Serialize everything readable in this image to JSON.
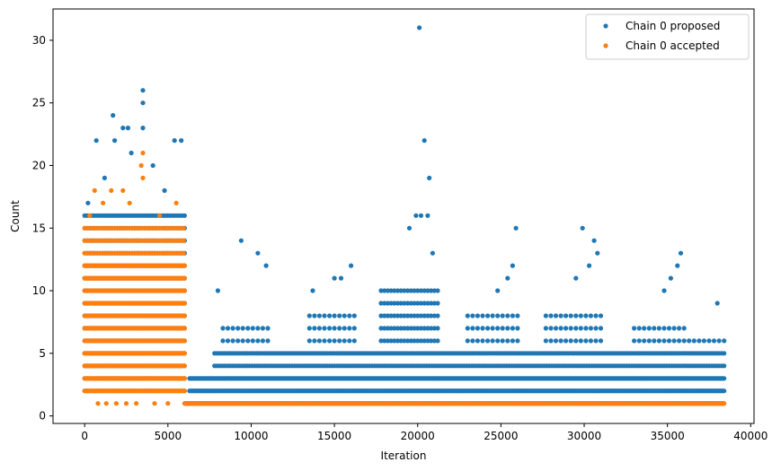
{
  "chart_data": {
    "type": "scatter",
    "title": "",
    "xlabel": "Iteration",
    "ylabel": "Count",
    "xlim": [
      -1900,
      40200
    ],
    "ylim": [
      -0.6,
      32.5
    ],
    "xticks": [
      0,
      5000,
      10000,
      15000,
      20000,
      25000,
      30000,
      35000,
      40000
    ],
    "xtick_labels": [
      "0",
      "5000",
      "10000",
      "15000",
      "20000",
      "25000",
      "30000",
      "35000",
      "40000"
    ],
    "yticks": [
      0,
      5,
      10,
      15,
      20,
      25,
      30
    ],
    "ytick_labels": [
      "0",
      "5",
      "10",
      "15",
      "20",
      "25",
      "30"
    ],
    "grid": false,
    "legend": {
      "position": "top-right"
    },
    "series": [
      {
        "name": "Chain 0 proposed",
        "color": "#1f77b4",
        "points": [
          [
            20100,
            31
          ],
          [
            3500,
            26
          ],
          [
            3500,
            25
          ],
          [
            1700,
            24
          ],
          [
            3500,
            23
          ],
          [
            2300,
            23
          ],
          [
            2600,
            23
          ],
          [
            20400,
            22
          ],
          [
            700,
            22
          ],
          [
            5400,
            22
          ],
          [
            5800,
            22
          ],
          [
            20700,
            19
          ],
          [
            9400,
            14
          ],
          [
            10400,
            13
          ],
          [
            16000,
            12
          ],
          [
            25900,
            15
          ],
          [
            29900,
            15
          ],
          [
            30600,
            14
          ],
          [
            35800,
            13
          ],
          [
            38000,
            9
          ],
          [
            13700,
            10
          ],
          [
            8000,
            10
          ],
          [
            19900,
            16
          ],
          [
            20200,
            16
          ],
          [
            20600,
            16
          ],
          [
            4100,
            20
          ],
          [
            1200,
            19
          ],
          [
            1800,
            22
          ],
          [
            2800,
            21
          ],
          [
            200,
            17
          ],
          [
            4800,
            18
          ],
          [
            15000,
            11
          ],
          [
            15400,
            11
          ],
          [
            10900,
            12
          ],
          [
            25400,
            11
          ],
          [
            25700,
            12
          ],
          [
            30300,
            12
          ],
          [
            30800,
            13
          ],
          [
            35200,
            11
          ],
          [
            35600,
            12
          ],
          [
            19500,
            15
          ],
          [
            20900,
            13
          ],
          [
            24800,
            10
          ],
          [
            34800,
            10
          ],
          [
            29500,
            11
          ]
        ],
        "bands": [
          {
            "from": 6300,
            "to": 38400,
            "step": 60,
            "y": [
              2,
              3
            ]
          },
          {
            "from": 7800,
            "to": 38400,
            "step": 150,
            "y": [
              4,
              5
            ]
          },
          {
            "from": 8300,
            "to": 11000,
            "step": 300,
            "y": [
              6,
              7
            ]
          },
          {
            "from": 13500,
            "to": 16300,
            "step": 300,
            "y": [
              6,
              7,
              8
            ]
          },
          {
            "from": 17800,
            "to": 21200,
            "step": 200,
            "y": [
              6,
              7,
              8,
              9,
              10
            ]
          },
          {
            "from": 23000,
            "to": 26100,
            "step": 300,
            "y": [
              6,
              7,
              8
            ]
          },
          {
            "from": 27700,
            "to": 31000,
            "step": 300,
            "y": [
              6,
              7,
              8
            ]
          },
          {
            "from": 33000,
            "to": 36200,
            "step": 300,
            "y": [
              6,
              7
            ]
          },
          {
            "from": 36300,
            "to": 38400,
            "step": 300,
            "y": [
              6
            ]
          },
          {
            "from": 0,
            "to": 6000,
            "step": 150,
            "y": [
              2,
              3,
              4,
              5,
              6,
              7,
              8,
              9,
              10,
              11,
              12,
              13,
              14,
              15,
              16
            ]
          }
        ]
      },
      {
        "name": "Chain 0 accepted",
        "color": "#ff7f0e",
        "points": [
          [
            3500,
            21
          ],
          [
            3500,
            19
          ],
          [
            3400,
            20
          ],
          [
            1600,
            18
          ],
          [
            2300,
            18
          ],
          [
            600,
            18
          ],
          [
            5500,
            17
          ],
          [
            300,
            16
          ],
          [
            2700,
            17
          ],
          [
            4500,
            16
          ],
          [
            1100,
            17
          ],
          [
            800,
            1
          ],
          [
            1300,
            1
          ],
          [
            1900,
            1
          ],
          [
            2500,
            1
          ],
          [
            3100,
            1
          ],
          [
            4200,
            1
          ],
          [
            5000,
            1
          ]
        ],
        "bands": [
          {
            "from": 6000,
            "to": 38400,
            "step": 25,
            "y": [
              1
            ]
          },
          {
            "from": 0,
            "to": 6000,
            "step": 60,
            "y": [
              2,
              3,
              4,
              5,
              6,
              7,
              8,
              9,
              10,
              11,
              12
            ]
          },
          {
            "from": 0,
            "to": 6000,
            "step": 180,
            "y": [
              13,
              14,
              15
            ]
          }
        ]
      }
    ]
  }
}
